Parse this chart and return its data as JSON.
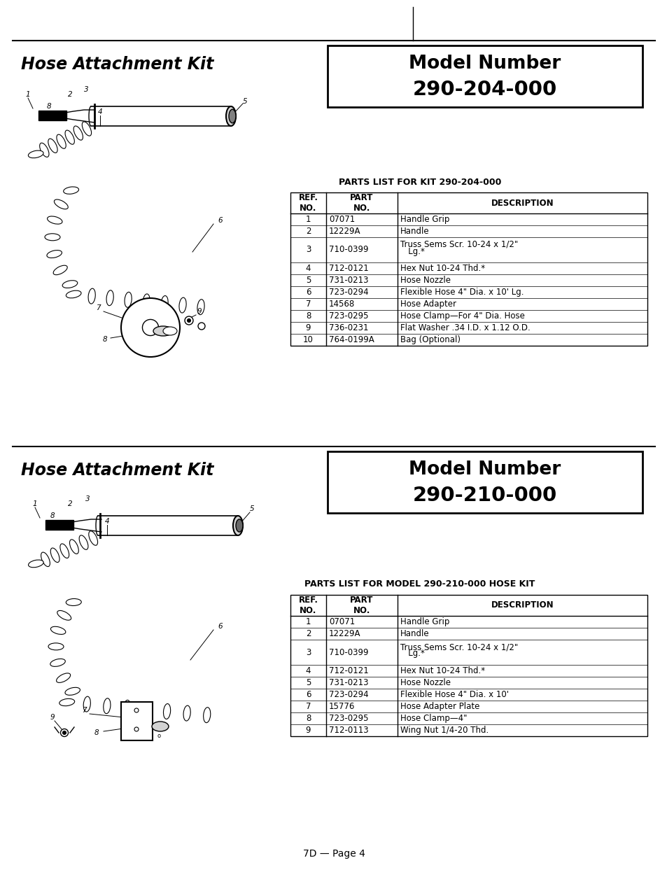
{
  "page_bg": "#ffffff",
  "footer_text": "7D — Page 4",
  "section1": {
    "title_left": "Hose Attachment Kit",
    "model_box_title": "Model Number",
    "model_box_number": "290-204-000",
    "parts_title": "PARTS LIST FOR KIT 290-204-000",
    "rows": [
      [
        "1",
        "07071",
        "Handle Grip"
      ],
      [
        "2",
        "12229A",
        "Handle"
      ],
      [
        "3",
        "710-0399",
        "Truss Sems Scr. 10-24 x 1/2\"\n   Lg.*"
      ],
      [
        "4",
        "712-0121",
        "Hex Nut 10-24 Thd.*"
      ],
      [
        "5",
        "731-0213",
        "Hose Nozzle"
      ],
      [
        "6",
        "723-0294",
        "Flexible Hose 4\" Dia. x 10' Lg."
      ],
      [
        "7",
        "14568",
        "Hose Adapter"
      ],
      [
        "8",
        "723-0295",
        "Hose Clamp—For 4\" Dia. Hose"
      ],
      [
        "9",
        "736-0231",
        "Flat Washer .34 I.D. x 1.12 O.D."
      ],
      [
        "10",
        "764-0199A",
        "Bag (Optional)"
      ]
    ]
  },
  "section2": {
    "title_left": "Hose Attachment Kit",
    "model_box_title": "Model Number",
    "model_box_number": "290-210-000",
    "parts_title": "PARTS LIST FOR MODEL 290-210-000 HOSE KIT",
    "rows": [
      [
        "1",
        "07071",
        "Handle Grip"
      ],
      [
        "2",
        "12229A",
        "Handle"
      ],
      [
        "3",
        "710-0399",
        "Truss Sems Scr. 10-24 x 1/2\"\n   Lg.*"
      ],
      [
        "4",
        "712-0121",
        "Hex Nut 10-24 Thd.*"
      ],
      [
        "5",
        "731-0213",
        "Hose Nozzle"
      ],
      [
        "6",
        "723-0294",
        "Flexible Hose 4\" Dia. x 10'"
      ],
      [
        "7",
        "15776",
        "Hose Adapter Plate"
      ],
      [
        "8",
        "723-0295",
        "Hose Clamp—4\""
      ],
      [
        "9",
        "712-0113",
        "Wing Nut 1/4-20 Thd."
      ]
    ]
  }
}
